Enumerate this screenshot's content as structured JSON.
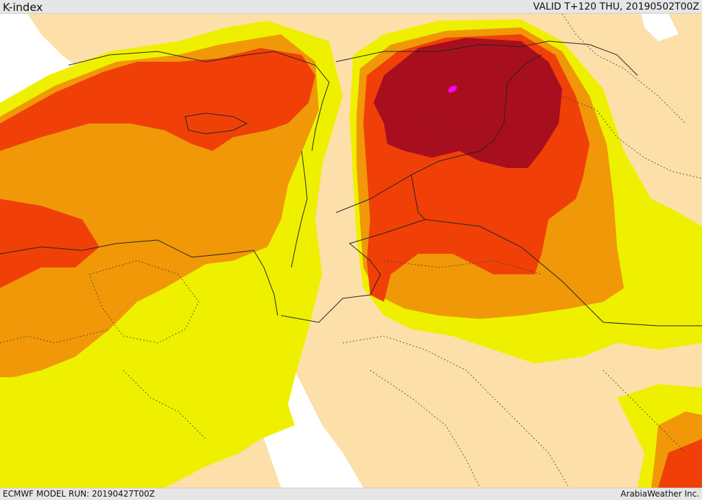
{
  "header": {
    "title": "K-index",
    "valid_time": "VALID T+120 THU, 20190502T00Z"
  },
  "footer": {
    "model_run": "ECMWF MODEL RUN: 20190427T00Z",
    "credit": "ArabiaWeather Inc."
  },
  "colors": {
    "sea": "#ffffff",
    "land_base": "#fddfaa",
    "k_low": "#eef000",
    "k_mid": "#f09808",
    "k_high": "#f04008",
    "k_very_high": "#a80f1e",
    "k_extreme": "#ff00ff",
    "border": "#222222"
  }
}
